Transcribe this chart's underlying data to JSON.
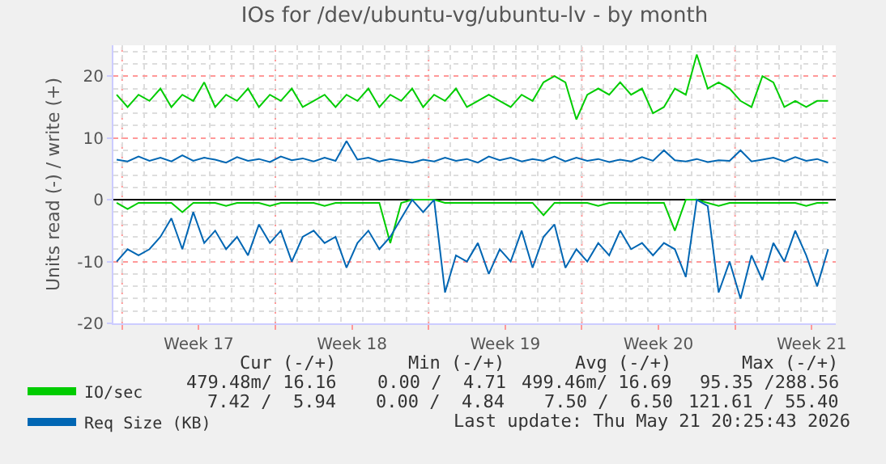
{
  "chart_data": {
    "type": "line",
    "title": "IOs for /dev/ubuntu-vg/ubuntu-lv - by month",
    "ylabel": "Units read (-) / write (+)",
    "x": [
      "2026-04-19T00:00",
      "2026-04-19T12:00",
      "2026-04-20T00:00",
      "2026-04-20T12:00",
      "2026-04-21T00:00",
      "2026-04-21T12:00",
      "2026-04-22T00:00",
      "2026-04-22T12:00",
      "2026-04-23T00:00",
      "2026-04-23T12:00",
      "2026-04-24T00:00",
      "2026-04-24T12:00",
      "2026-04-25T00:00",
      "2026-04-25T12:00",
      "2026-04-26T00:00",
      "2026-04-26T12:00",
      "2026-04-27T00:00",
      "2026-04-27T12:00",
      "2026-04-28T00:00",
      "2026-04-28T12:00",
      "2026-04-29T00:00",
      "2026-04-29T12:00",
      "2026-04-30T00:00",
      "2026-04-30T12:00",
      "2026-05-01T00:00",
      "2026-05-01T12:00",
      "2026-05-02T00:00",
      "2026-05-02T12:00",
      "2026-05-03T00:00",
      "2026-05-03T12:00",
      "2026-05-04T00:00",
      "2026-05-04T12:00",
      "2026-05-05T00:00",
      "2026-05-05T12:00",
      "2026-05-06T00:00",
      "2026-05-06T12:00",
      "2026-05-07T00:00",
      "2026-05-07T12:00",
      "2026-05-08T00:00",
      "2026-05-08T12:00",
      "2026-05-09T00:00",
      "2026-05-09T12:00",
      "2026-05-10T00:00",
      "2026-05-10T12:00",
      "2026-05-11T00:00",
      "2026-05-11T12:00",
      "2026-05-12T00:00",
      "2026-05-12T12:00",
      "2026-05-13T00:00",
      "2026-05-13T12:00",
      "2026-05-14T00:00",
      "2026-05-14T12:00",
      "2026-05-15T00:00",
      "2026-05-15T12:00",
      "2026-05-16T00:00",
      "2026-05-16T12:00",
      "2026-05-17T00:00",
      "2026-05-17T12:00",
      "2026-05-18T00:00",
      "2026-05-18T12:00",
      "2026-05-19T00:00",
      "2026-05-19T12:00",
      "2026-05-20T00:00",
      "2026-05-20T12:00",
      "2026-05-21T00:00",
      "2026-05-21T12:00"
    ],
    "series": [
      {
        "name": "IO/sec",
        "color": "#00cc00",
        "values": [
          17,
          15,
          17,
          16,
          18,
          15,
          17,
          16,
          19,
          15,
          17,
          16,
          18,
          15,
          17,
          16,
          18,
          15,
          16,
          17,
          15,
          17,
          16,
          18,
          15,
          17,
          16,
          18,
          15,
          17,
          16,
          18,
          15,
          16,
          17,
          16,
          15,
          17,
          16,
          19,
          20,
          19,
          13,
          17,
          18,
          17,
          19,
          17,
          18,
          14,
          15,
          18,
          17,
          23.5,
          18,
          19,
          18,
          16,
          15,
          20,
          19,
          15,
          16,
          15,
          16,
          16
        ]
      },
      {
        "color": "#00cc00",
        "values": [
          -0.5,
          -1.5,
          -0.5,
          -0.5,
          -0.5,
          -0.5,
          -2,
          -0.5,
          -0.5,
          -0.5,
          -1,
          -0.5,
          -0.5,
          -0.5,
          -1,
          -0.5,
          -0.5,
          -0.5,
          -0.5,
          -1,
          -0.5,
          -0.5,
          -0.5,
          -0.5,
          -0.5,
          -7,
          -0.5,
          0,
          0,
          0,
          -0.5,
          -0.5,
          -0.5,
          -0.5,
          -0.5,
          -0.5,
          -0.5,
          -0.5,
          -0.5,
          -2.5,
          -0.5,
          -0.5,
          -0.5,
          -0.5,
          -1,
          -0.5,
          -0.5,
          -0.5,
          -0.5,
          -0.5,
          -0.5,
          -5,
          0,
          0,
          -0.5,
          -1,
          -0.5,
          -0.5,
          -0.5,
          -0.5,
          -0.5,
          -0.5,
          -0.5,
          -1,
          -0.5,
          -0.5
        ]
      },
      {
        "name": "Req Size (KB)",
        "color": "#0066b3",
        "values": [
          6.5,
          6.2,
          7,
          6.3,
          6.8,
          6.2,
          7.2,
          6.3,
          6.8,
          6.5,
          6,
          6.9,
          6.3,
          6.6,
          6.1,
          7,
          6.4,
          6.7,
          6.2,
          6.8,
          6.3,
          9.5,
          6.5,
          6.8,
          6.2,
          6.6,
          6.3,
          6,
          6.5,
          6.2,
          6.8,
          6.3,
          6.6,
          6,
          7,
          6.4,
          6.8,
          6.2,
          6.6,
          6.3,
          7,
          6.2,
          6.8,
          6.3,
          6.6,
          6.1,
          6.5,
          6.2,
          6.9,
          6.3,
          8,
          6.4,
          6.2,
          6.6,
          6.1,
          6.4,
          6.3,
          8,
          6.2,
          6.5,
          6.8,
          6.2,
          6.9,
          6.3,
          6.6,
          6
        ]
      },
      {
        "color": "#0066b3",
        "values": [
          -10,
          -8,
          -9,
          -8,
          -6,
          -3,
          -8,
          -2,
          -7,
          -5,
          -8,
          -6,
          -9,
          -4,
          -7,
          -5,
          -10,
          -6,
          -5,
          -7,
          -6,
          -11,
          -7,
          -5,
          -8,
          -6,
          -3,
          0,
          -2,
          0,
          -15,
          -9,
          -10,
          -7,
          -12,
          -8,
          -10,
          -5,
          -11,
          -6,
          -4,
          -11,
          -8,
          -10,
          -7,
          -9,
          -5,
          -8,
          -7,
          -9,
          -7,
          -8,
          -12.5,
          0,
          -1,
          -15,
          -10,
          -16,
          -9,
          -13,
          -7,
          -10,
          -5,
          -9,
          -14,
          -8
        ]
      }
    ],
    "xlim": [
      "2026-04-18T20:25",
      "2026-05-21T20:25"
    ],
    "xticks": [
      {
        "value": "2026-04-19T06:00",
        "label": null
      },
      {
        "value": "2026-04-22T18:00",
        "label": "Week 17"
      },
      {
        "value": "2026-04-26T06:00",
        "label": null
      },
      {
        "value": "2026-04-29T18:00",
        "label": "Week 18"
      },
      {
        "value": "2026-05-03T06:00",
        "label": null
      },
      {
        "value": "2026-05-06T18:00",
        "label": "Week 19"
      },
      {
        "value": "2026-05-10T06:00",
        "label": null
      },
      {
        "value": "2026-05-13T18:00",
        "label": "Week 20"
      },
      {
        "value": "2026-05-17T06:00",
        "label": null
      },
      {
        "value": "2026-05-20T18:00",
        "label": "Week 21"
      }
    ],
    "ylim": [
      -20,
      25
    ],
    "yticks": [
      -20,
      -10,
      0,
      10,
      20
    ],
    "grid": true,
    "legend": "bottom left",
    "marker": "none",
    "line_style": "solid",
    "annotations": [
      "Cur (-/+)",
      "Min (-/+)",
      "Avg (-/+)",
      "Max (-/+)",
      "479.48m/ 16.16",
      "0.00 /  4.71",
      "499.46m/ 16.69",
      "95.35 /288.56",
      "7.42 /  5.94",
      "0.00 /  4.84",
      "7.50 /  6.50",
      "121.61 / 55.40",
      "Last update: Thu May 21 20:25:43 2026"
    ]
  }
}
